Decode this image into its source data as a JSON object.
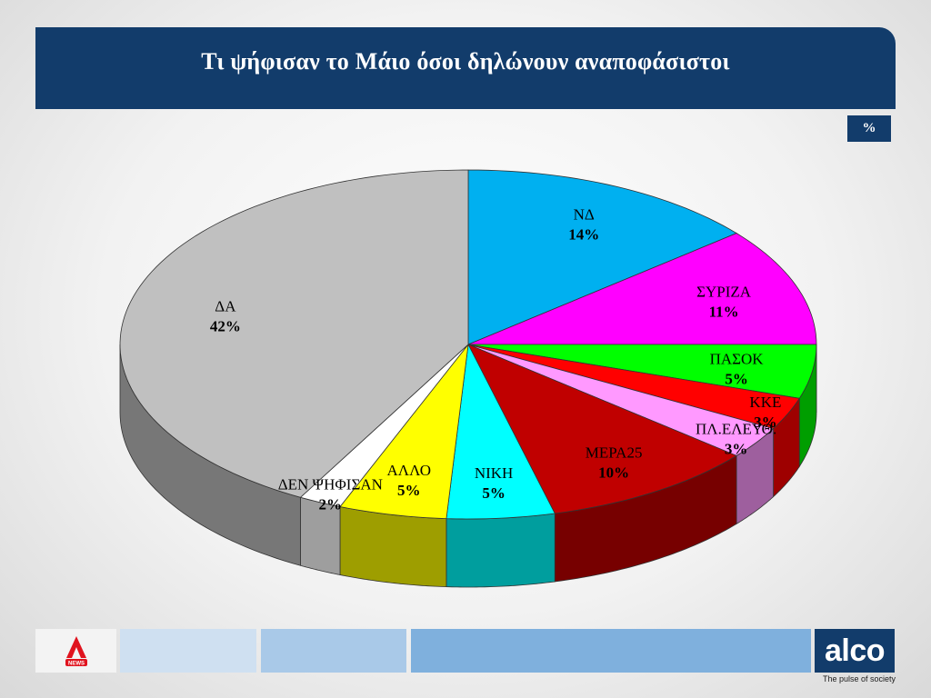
{
  "header": {
    "title": "Τι ψήφισαν το Μάιο όσοι δηλώνουν αναποφάσιστοι",
    "unit_badge": "%"
  },
  "chart_data": {
    "type": "pie",
    "title": "Τι ψήφισαν το Μάιο όσοι δηλώνουν αναποφάσιστοι",
    "unit": "%",
    "style": "3d",
    "slices": [
      {
        "label": "ΝΔ",
        "value": 14,
        "value_label": "14%",
        "color": "#00b0f0"
      },
      {
        "label": "ΣΥΡΙΖΑ",
        "value": 11,
        "value_label": "11%",
        "color": "#ff00ff"
      },
      {
        "label": "ΠΑΣΟΚ",
        "value": 5,
        "value_label": "5%",
        "color": "#00ff00"
      },
      {
        "label": "ΚΚΕ",
        "value": 3,
        "value_label": "3%",
        "color": "#ff0000"
      },
      {
        "label": "ΠΛ.ΕΛΕΥΘ.",
        "value": 3,
        "value_label": "3%",
        "color": "#ff99ff"
      },
      {
        "label": "ΜΕΡΑ25",
        "value": 10,
        "value_label": "10%",
        "color": "#c00000"
      },
      {
        "label": "ΝΙΚΗ",
        "value": 5,
        "value_label": "5%",
        "color": "#00ffff"
      },
      {
        "label": "ΑΛΛΟ",
        "value": 5,
        "value_label": "5%",
        "color": "#ffff00"
      },
      {
        "label": "ΔΕΝ ΨΗΦΙΣΑΝ",
        "value": 2,
        "value_label": "2%",
        "color": "#ffffff"
      },
      {
        "label": "ΔΑ",
        "value": 42,
        "value_label": "42%",
        "color": "#c0c0c0"
      }
    ]
  },
  "footer": {
    "brand_logo": "ALPHA NEWS",
    "brand_small": "NEWS",
    "alco_logo": "alco",
    "alco_tagline": "The pulse of society",
    "colors": [
      "#f3f3f3",
      "#cfe0f1",
      "#a9c9e8",
      "#7fb0dd",
      "#123c6b"
    ]
  }
}
